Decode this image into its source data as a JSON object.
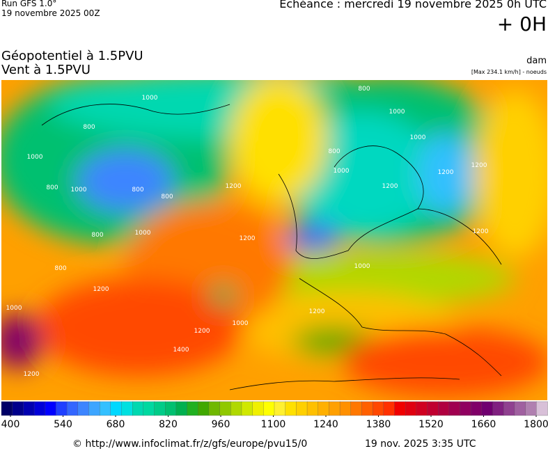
{
  "header": {
    "run": "Run GFS 1.0°",
    "run_date": "19 novembre 2025 00Z",
    "echeance": "Echéance : mercredi 19 novembre 2025 0h UTC",
    "offset": "+ 0H"
  },
  "map": {
    "title_1": "Géopotentiel à 1.5PVU",
    "title_2": "Vent à 1.5PVU",
    "unit": "dam",
    "max_note": "[Max 234.1 km/h] - noeuds",
    "contour_labels": [
      "1000",
      "800",
      "1000",
      "800",
      "800",
      "800",
      "1000",
      "1200",
      "800",
      "1200",
      "1000",
      "800",
      "800",
      "1000",
      "800",
      "1000",
      "1000",
      "1200",
      "1200",
      "1200",
      "1200",
      "1000",
      "1200",
      "1200",
      "1000",
      "1200",
      "1400",
      "1000",
      "1200"
    ]
  },
  "colorbar": {
    "ticks": [
      400,
      540,
      680,
      820,
      960,
      1100,
      1240,
      1380,
      1520,
      1660,
      1800
    ],
    "lim": [
      400,
      1800
    ],
    "colors": [
      "#000066",
      "#00008b",
      "#0000b0",
      "#0000d8",
      "#0000ff",
      "#1f3fff",
      "#3366ff",
      "#3d85ff",
      "#3da5ff",
      "#33c0ff",
      "#00d8ff",
      "#00e0e0",
      "#00d8b0",
      "#00d8a0",
      "#00cc88",
      "#00c070",
      "#00b050",
      "#20b020",
      "#40a800",
      "#70b800",
      "#90c800",
      "#b0d800",
      "#d0e800",
      "#f0f000",
      "#ffff00",
      "#fff030",
      "#ffe000",
      "#ffd000",
      "#ffc000",
      "#ffb000",
      "#ffa000",
      "#ff9000",
      "#ff7800",
      "#ff6000",
      "#ff4800",
      "#ff3000",
      "#f00000",
      "#e00010",
      "#d00020",
      "#c00030",
      "#b00040",
      "#a00050",
      "#900060",
      "#800068",
      "#700070",
      "#802080",
      "#904090",
      "#a060a0",
      "#b080b0",
      "#d8c0d8"
    ]
  },
  "footer": {
    "url": "© http://www.infoclimat.fr/z/gfs/europe/pvu15/0",
    "date": "19 nov. 2025  3:35 UTC"
  }
}
